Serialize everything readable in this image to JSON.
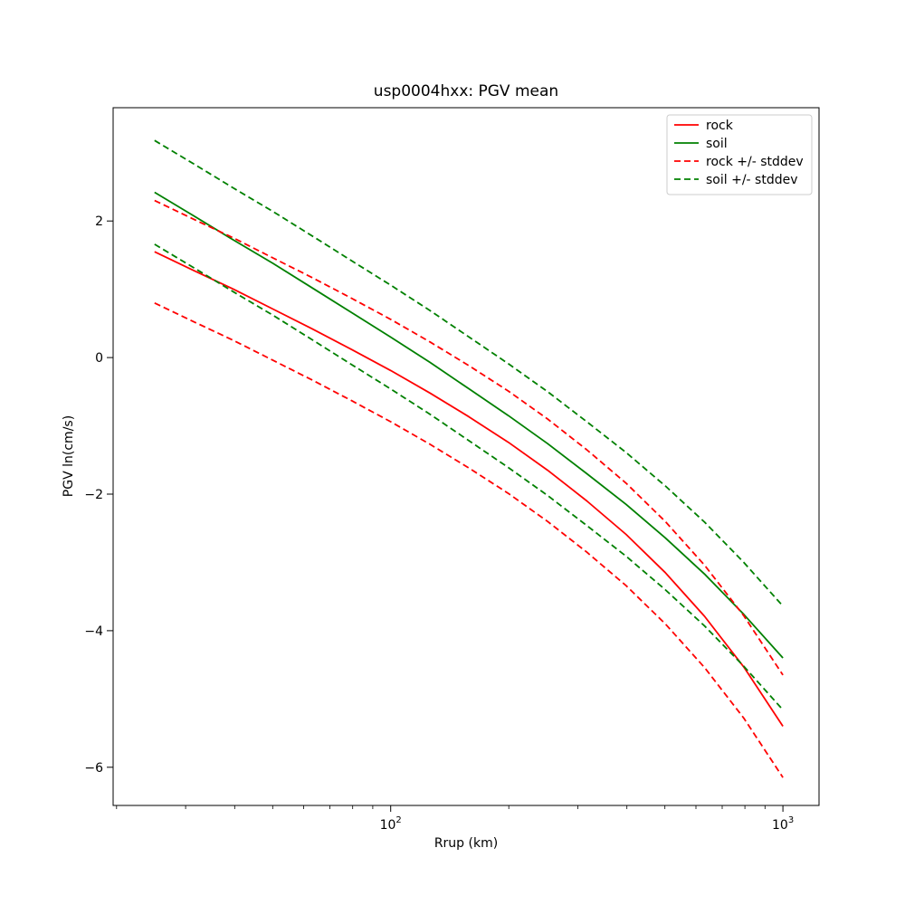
{
  "chart_data": {
    "type": "line",
    "title": "usp0004hxx: PGV mean",
    "xlabel": "Rrup (km)",
    "ylabel": "PGV ln(cm/s)",
    "x_scale": "log",
    "grid": false,
    "legend_position": "upper right",
    "xlim": [
      19.6,
      1236
    ],
    "ylim": [
      -6.56,
      3.66
    ],
    "x_ticks": [
      {
        "value": 100,
        "base": "10",
        "exp": "2"
      },
      {
        "value": 1000,
        "base": "10",
        "exp": "3"
      }
    ],
    "x_minor_ticks": [
      20,
      30,
      40,
      50,
      60,
      70,
      80,
      90,
      200,
      300,
      400,
      500,
      600,
      700,
      800,
      900
    ],
    "y_ticks": [
      {
        "value": 2,
        "label": "2"
      },
      {
        "value": 0,
        "label": "0"
      },
      {
        "value": -2,
        "label": "−2"
      },
      {
        "value": -4,
        "label": "−4"
      },
      {
        "value": -6,
        "label": "−6"
      }
    ],
    "x": [
      25,
      31.6,
      39.8,
      50.1,
      63.1,
      79.4,
      100,
      125.9,
      158.5,
      199.5,
      251.2,
      316.2,
      398.1,
      501.2,
      631,
      794.3,
      1000
    ],
    "stddev": {
      "rock": 0.75,
      "soil": 0.76
    },
    "series": [
      {
        "name": "rock",
        "color": "#ff0000",
        "dash": "solid",
        "values": [
          1.55,
          1.27,
          1.0,
          0.71,
          0.42,
          0.12,
          -0.19,
          -0.52,
          -0.87,
          -1.24,
          -1.65,
          -2.1,
          -2.59,
          -3.15,
          -3.79,
          -4.53,
          -5.4
        ]
      },
      {
        "name": "soil",
        "color": "#008000",
        "dash": "solid",
        "values": [
          2.42,
          2.07,
          1.72,
          1.38,
          1.02,
          0.66,
          0.3,
          -0.07,
          -0.46,
          -0.85,
          -1.26,
          -1.7,
          -2.15,
          -2.64,
          -3.17,
          -3.76,
          -4.4
        ]
      },
      {
        "name": "rock-plus-stddev",
        "color": "#ff0000",
        "dash": "dashed",
        "values": [
          2.3,
          2.02,
          1.75,
          1.46,
          1.17,
          0.87,
          0.56,
          0.23,
          -0.12,
          -0.49,
          -0.9,
          -1.35,
          -1.84,
          -2.4,
          -3.04,
          -3.78,
          -4.65
        ]
      },
      {
        "name": "rock-minus-stddev",
        "color": "#ff0000",
        "dash": "dashed",
        "values": [
          0.8,
          0.52,
          0.25,
          -0.04,
          -0.33,
          -0.63,
          -0.94,
          -1.27,
          -1.62,
          -1.99,
          -2.4,
          -2.85,
          -3.34,
          -3.9,
          -4.54,
          -5.28,
          -6.15
        ]
      },
      {
        "name": "soil-plus-stddev",
        "color": "#008000",
        "dash": "dashed",
        "values": [
          3.18,
          2.83,
          2.48,
          2.14,
          1.78,
          1.42,
          1.06,
          0.69,
          0.3,
          -0.09,
          -0.5,
          -0.94,
          -1.39,
          -1.88,
          -2.41,
          -3.0,
          -3.64
        ]
      },
      {
        "name": "soil-minus-stddev",
        "color": "#008000",
        "dash": "dashed",
        "values": [
          1.66,
          1.31,
          0.96,
          0.62,
          0.26,
          -0.1,
          -0.46,
          -0.83,
          -1.22,
          -1.61,
          -2.02,
          -2.46,
          -2.91,
          -3.4,
          -3.93,
          -4.52,
          -5.16
        ]
      }
    ],
    "legend": {
      "items": [
        {
          "label": "rock",
          "color": "#ff0000",
          "dash": "solid"
        },
        {
          "label": "soil",
          "color": "#008000",
          "dash": "solid"
        },
        {
          "label": "rock +/- stddev",
          "color": "#ff0000",
          "dash": "dashed"
        },
        {
          "label": "soil +/- stddev",
          "color": "#008000",
          "dash": "dashed"
        }
      ]
    },
    "colors": {
      "rock": "#ff0000",
      "soil": "#008000",
      "axes": "#000000",
      "legend_border": "#cccccc"
    }
  }
}
